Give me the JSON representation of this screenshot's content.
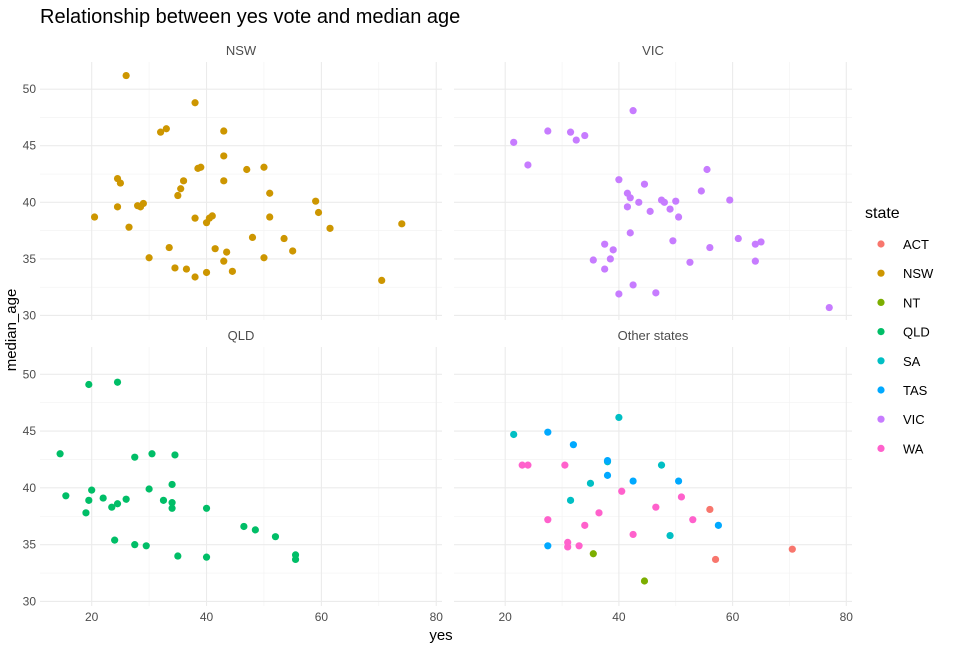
{
  "chart_data": {
    "type": "scatter",
    "title": "Relationship between yes vote and median age",
    "xlabel": "yes",
    "ylabel": "median_age",
    "xlim": [
      11,
      81
    ],
    "ylim": [
      29.6,
      52.4
    ],
    "x_ticks": [
      20,
      40,
      60,
      80
    ],
    "y_ticks": [
      30,
      35,
      40,
      45,
      50
    ],
    "grid": true,
    "legend": {
      "title": "state",
      "placement": "right",
      "entries": [
        {
          "name": "ACT",
          "color": "#F8766D"
        },
        {
          "name": "NSW",
          "color": "#CD9600"
        },
        {
          "name": "NT",
          "color": "#7CAE00"
        },
        {
          "name": "QLD",
          "color": "#00BE67"
        },
        {
          "name": "SA",
          "color": "#00BFC4"
        },
        {
          "name": "TAS",
          "color": "#00A9FF"
        },
        {
          "name": "VIC",
          "color": "#C77CFF"
        },
        {
          "name": "WA",
          "color": "#FF61CC"
        }
      ]
    },
    "panels": [
      {
        "name": "NSW",
        "series": [
          {
            "state": "NSW",
            "points": [
              [
                26,
                51.2
              ],
              [
                38,
                48.8
              ],
              [
                32,
                46.2
              ],
              [
                33,
                46.5
              ],
              [
                43,
                46.3
              ],
              [
                24.5,
                42.1
              ],
              [
                25,
                41.7
              ],
              [
                24.5,
                39.6
              ],
              [
                20.5,
                38.7
              ],
              [
                26.5,
                37.8
              ],
              [
                28,
                39.7
              ],
              [
                29,
                39.9
              ],
              [
                28.5,
                39.6
              ],
              [
                36,
                41.9
              ],
              [
                35.5,
                41.2
              ],
              [
                35,
                40.6
              ],
              [
                38.5,
                43
              ],
              [
                39,
                43.1
              ],
              [
                43,
                44.1
              ],
              [
                50,
                43.1
              ],
              [
                47,
                42.9
              ],
              [
                43,
                41.9
              ],
              [
                51,
                40.8
              ],
              [
                38,
                38.6
              ],
              [
                40,
                38.2
              ],
              [
                40.5,
                38.6
              ],
              [
                41,
                38.8
              ],
              [
                51,
                38.7
              ],
              [
                59,
                40.1
              ],
              [
                59.5,
                39.1
              ],
              [
                61.5,
                37.7
              ],
              [
                74,
                38.1
              ],
              [
                30,
                35.1
              ],
              [
                33.5,
                36
              ],
              [
                34.5,
                34.2
              ],
              [
                36.5,
                34.1
              ],
              [
                38,
                33.4
              ],
              [
                40,
                33.8
              ],
              [
                41.5,
                35.9
              ],
              [
                43.5,
                35.6
              ],
              [
                43,
                34.8
              ],
              [
                44.5,
                33.9
              ],
              [
                48,
                36.9
              ],
              [
                50,
                35.1
              ],
              [
                53.5,
                36.8
              ],
              [
                55,
                35.7
              ],
              [
                70.5,
                33.1
              ]
            ]
          }
        ]
      },
      {
        "name": "VIC",
        "series": [
          {
            "state": "VIC",
            "points": [
              [
                21.5,
                45.3
              ],
              [
                24,
                43.3
              ],
              [
                27.5,
                46.3
              ],
              [
                31.5,
                46.2
              ],
              [
                32.5,
                45.5
              ],
              [
                34,
                45.9
              ],
              [
                42.5,
                48.1
              ],
              [
                40,
                42
              ],
              [
                41.5,
                40.8
              ],
              [
                42,
                40.4
              ],
              [
                41.5,
                39.6
              ],
              [
                43.5,
                40
              ],
              [
                44.5,
                41.6
              ],
              [
                45.5,
                39.2
              ],
              [
                47.5,
                40.2
              ],
              [
                48,
                40
              ],
              [
                49,
                39.4
              ],
              [
                50,
                40.1
              ],
              [
                50.5,
                38.7
              ],
              [
                54.5,
                41
              ],
              [
                55.5,
                42.9
              ],
              [
                59.5,
                40.2
              ],
              [
                61,
                36.8
              ],
              [
                64,
                36.3
              ],
              [
                65,
                36.5
              ],
              [
                42,
                37.3
              ],
              [
                37.5,
                36.3
              ],
              [
                39,
                35.8
              ],
              [
                38.5,
                35
              ],
              [
                35.5,
                34.9
              ],
              [
                37.5,
                34.1
              ],
              [
                49.5,
                36.6
              ],
              [
                56,
                36
              ],
              [
                52.5,
                34.7
              ],
              [
                64,
                34.8
              ],
              [
                40,
                31.9
              ],
              [
                42.5,
                32.7
              ],
              [
                46.5,
                32
              ],
              [
                77,
                30.7
              ]
            ]
          }
        ]
      },
      {
        "name": "QLD",
        "series": [
          {
            "state": "QLD",
            "points": [
              [
                19.5,
                49.1
              ],
              [
                24.5,
                49.3
              ],
              [
                14.5,
                43
              ],
              [
                15.5,
                39.3
              ],
              [
                19.5,
                38.9
              ],
              [
                20,
                39.8
              ],
              [
                22,
                39.1
              ],
              [
                23.5,
                38.3
              ],
              [
                24.5,
                38.6
              ],
              [
                26,
                39
              ],
              [
                19,
                37.8
              ],
              [
                27.5,
                42.7
              ],
              [
                30.5,
                43
              ],
              [
                34.5,
                42.9
              ],
              [
                34,
                40.3
              ],
              [
                30,
                39.9
              ],
              [
                32.5,
                38.9
              ],
              [
                34,
                38.7
              ],
              [
                34,
                38.2
              ],
              [
                40,
                38.2
              ],
              [
                24,
                35.4
              ],
              [
                27.5,
                35
              ],
              [
                29.5,
                34.9
              ],
              [
                35,
                34
              ],
              [
                40,
                33.9
              ],
              [
                46.5,
                36.6
              ],
              [
                48.5,
                36.3
              ],
              [
                52,
                35.7
              ],
              [
                55.5,
                34.1
              ],
              [
                55.5,
                33.7
              ]
            ]
          }
        ]
      },
      {
        "name": "Other states",
        "series": [
          {
            "state": "ACT",
            "points": [
              [
                56,
                38.1
              ],
              [
                57,
                33.7
              ],
              [
                70.5,
                34.6
              ]
            ]
          },
          {
            "state": "NT",
            "points": [
              [
                35.5,
                34.2
              ],
              [
                44.5,
                31.8
              ]
            ]
          },
          {
            "state": "SA",
            "points": [
              [
                21.5,
                44.7
              ],
              [
                40,
                46.2
              ],
              [
                38,
                42.3
              ],
              [
                47.5,
                42
              ],
              [
                35,
                40.4
              ],
              [
                31.5,
                38.9
              ],
              [
                49,
                35.8
              ]
            ]
          },
          {
            "state": "TAS",
            "points": [
              [
                27.5,
                44.9
              ],
              [
                32,
                43.8
              ],
              [
                38,
                42.4
              ],
              [
                38,
                41.1
              ],
              [
                42.5,
                40.6
              ],
              [
                50.5,
                40.6
              ],
              [
                27.5,
                34.9
              ],
              [
                57.5,
                36.7
              ]
            ]
          },
          {
            "state": "WA",
            "points": [
              [
                23,
                42
              ],
              [
                24,
                42
              ],
              [
                30.5,
                42
              ],
              [
                40.5,
                39.7
              ],
              [
                36.5,
                37.8
              ],
              [
                27.5,
                37.2
              ],
              [
                34,
                36.7
              ],
              [
                31,
                35.2
              ],
              [
                31,
                34.8
              ],
              [
                33,
                34.9
              ],
              [
                42.5,
                35.9
              ],
              [
                46.5,
                38.3
              ],
              [
                51,
                39.2
              ],
              [
                53,
                37.2
              ]
            ]
          }
        ]
      }
    ]
  }
}
